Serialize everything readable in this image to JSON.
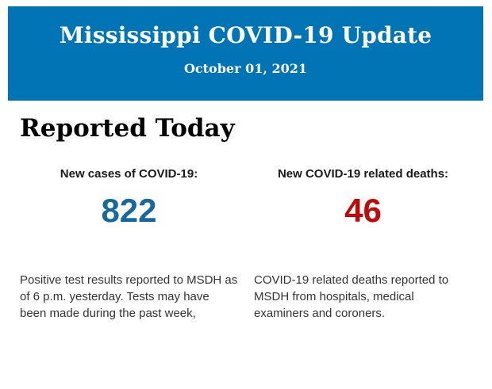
{
  "banner": {
    "title": "Mississippi COVID-19 Update",
    "date": "October 01, 2021",
    "bg_color": "#0074B4",
    "text_color": "#FFFFFF"
  },
  "section": {
    "heading": "Reported Today"
  },
  "stats": [
    {
      "label": "New cases of COVID-19:",
      "value": "822",
      "value_color": "#17689E",
      "description": "Positive test results reported to MSDH as of 6 p.m. yesterday. Tests may have been made during the past week,"
    },
    {
      "label": "New COVID-19 related deaths:",
      "value": "46",
      "value_color": "#C00A0A",
      "description": "COVID-19 related deaths reported to MSDH from hospitals, medical examiners and coroners."
    }
  ]
}
